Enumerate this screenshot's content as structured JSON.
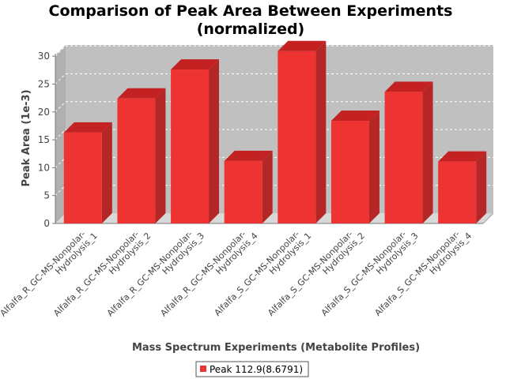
{
  "chart_data": {
    "type": "bar",
    "title": [
      "Comparison of Peak Area Between Experiments",
      "(normalized)"
    ],
    "xlabel": "Mass Spectrum Experiments (Metabolite Profiles)",
    "ylabel": "Peak Area (1e-3)",
    "ylim": [
      0,
      32
    ],
    "yticks": [
      0,
      5,
      10,
      15,
      20,
      25,
      30
    ],
    "grid": true,
    "categories": [
      [
        "Alfalfa_R_GC-MS-Nonpolar-",
        "Hydrolysis_1"
      ],
      [
        "Alfalfa_R_GC-MS-Nonpolar-",
        "Hydrolysis_2"
      ],
      [
        "Alfalfa_R_GC-MS-Nonpolar-",
        "Hydrolysis_3"
      ],
      [
        "Alfalfa_R_GC-MS-Nonpolar-",
        "Hydrolysis_4"
      ],
      [
        "Alfalfa_S_GC-MS-Nonpolar-",
        "Hydrolysis_1"
      ],
      [
        "Alfalfa_S_GC-MS-Nonpolar-",
        "Hydrolysis_2"
      ],
      [
        "Alfalfa_S_GC-MS-Nonpolar-",
        "Hydrolysis_3"
      ],
      [
        "Alfalfa_S_GC-MS-Nonpolar-",
        "Hydrolysis_4"
      ]
    ],
    "series": [
      {
        "name": "Peak 112.9(8.6791)",
        "color": "#ee3333",
        "values": [
          16.3,
          22.4,
          27.6,
          11.2,
          30.9,
          18.4,
          23.6,
          11.1
        ]
      }
    ],
    "legend_position": "bottom",
    "style": {
      "plot_background": "#c0c0c0",
      "gridline_color": "#ffffff",
      "bar_front": "#ee3333",
      "bar_top": "#c42222",
      "bar_side": "#b52626"
    }
  }
}
